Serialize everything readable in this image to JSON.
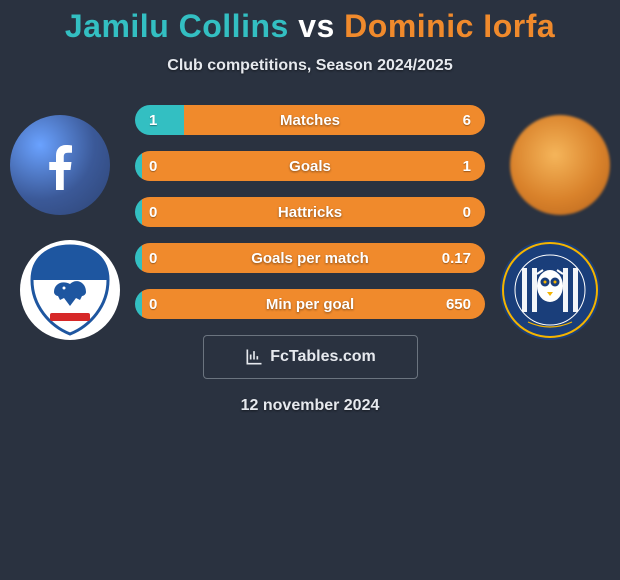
{
  "title": {
    "player1": "Jamilu Collins",
    "vs": "vs",
    "player2": "Dominic Iorfa",
    "player1_color": "#33bfc2",
    "vs_color": "#ffffff",
    "player2_color": "#f08a2c"
  },
  "subtitle": "Club competitions, Season 2024/2025",
  "background_color": "#2a3240",
  "avatars": {
    "left_type": "facebook-icon",
    "right_type": "blurred-photo"
  },
  "crests": {
    "left": {
      "name": "Cardiff City",
      "primary": "#1e56a0",
      "secondary": "#ffffff",
      "accent": "#d62828"
    },
    "right": {
      "name": "Sheffield Wednesday",
      "primary": "#1a3e7a",
      "secondary": "#f4b400",
      "stripe": "#ffffff"
    }
  },
  "stats": {
    "row_bg_left": "#33bfc2",
    "row_bg_right": "#f08a2c",
    "text_color": "#ffffff",
    "rows": [
      {
        "label": "Matches",
        "left": "1",
        "right": "6",
        "split": 0.14
      },
      {
        "label": "Goals",
        "left": "0",
        "right": "1",
        "split": 0.02
      },
      {
        "label": "Hattricks",
        "left": "0",
        "right": "0",
        "split": 0.02
      },
      {
        "label": "Goals per match",
        "left": "0",
        "right": "0.17",
        "split": 0.02
      },
      {
        "label": "Min per goal",
        "left": "0",
        "right": "650",
        "split": 0.02
      }
    ]
  },
  "branding": {
    "text": "FcTables.com",
    "border_color": "#6b747f"
  },
  "date": "12 november 2024"
}
